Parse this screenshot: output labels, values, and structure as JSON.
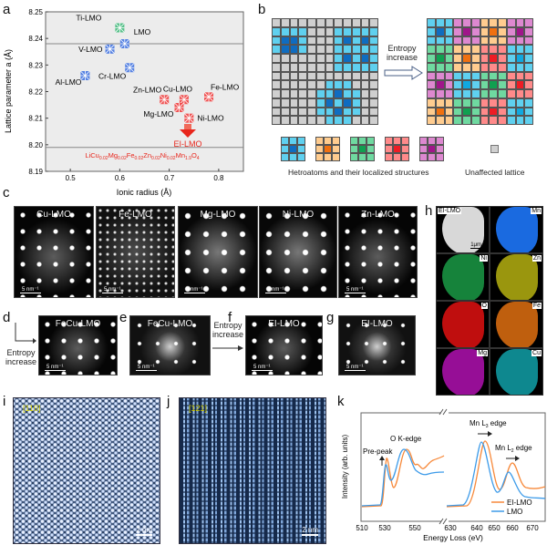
{
  "labels": {
    "a": "a",
    "b": "b",
    "c": "c",
    "d": "d",
    "e": "e",
    "f": "f",
    "g": "g",
    "h": "h",
    "i": "i",
    "j": "j",
    "k": "k"
  },
  "panel_a": {
    "ylabel": "Lattice parameter a (Å)",
    "xlabel": "Ionic radius (Å)",
    "xlim": [
      0.45,
      0.85
    ],
    "ylim": [
      8.19,
      8.25
    ],
    "xticks": [
      "0.5",
      "0.6",
      "0.7",
      "0.8"
    ],
    "yticks": [
      "8.19",
      "8.20",
      "8.21",
      "8.22",
      "8.23",
      "8.24",
      "8.25"
    ],
    "reference_lines": [
      8.238,
      8.199
    ],
    "points": [
      {
        "name": "Ti-LMO",
        "x": 0.6,
        "y": 8.244,
        "color": "#3cb878"
      },
      {
        "name": "LMO",
        "x": 0.61,
        "y": 8.238,
        "color": "#3b6fe0"
      },
      {
        "name": "V-LMO",
        "x": 0.58,
        "y": 8.236,
        "color": "#3b6fe0"
      },
      {
        "name": "Cr-LMO",
        "x": 0.62,
        "y": 8.229,
        "color": "#3b6fe0"
      },
      {
        "name": "Al-LMO",
        "x": 0.53,
        "y": 8.226,
        "color": "#3b6fe0"
      },
      {
        "name": "Zn-LMO",
        "x": 0.69,
        "y": 8.217,
        "color": "#f03a3a"
      },
      {
        "name": "Cu-LMO",
        "x": 0.73,
        "y": 8.217,
        "color": "#f03a3a"
      },
      {
        "name": "Fe-LMO",
        "x": 0.78,
        "y": 8.218,
        "color": "#f03a3a"
      },
      {
        "name": "Mg-LMO",
        "x": 0.72,
        "y": 8.214,
        "color": "#f03a3a"
      },
      {
        "name": "Ni-LMO",
        "x": 0.74,
        "y": 8.21,
        "color": "#f03a3a"
      }
    ],
    "ei_label": "EI-LMO",
    "formula": [
      [
        "LiCu",
        "0.02"
      ],
      [
        "Mg",
        "0.02"
      ],
      [
        "Fe",
        "0.02"
      ],
      [
        "Zn",
        "0.02"
      ],
      [
        "Ni",
        "0.02"
      ],
      [
        "Mn",
        "1.9"
      ],
      [
        "O",
        "4"
      ]
    ],
    "accent": "#e8261c"
  },
  "panel_b": {
    "arrow_text_1": "Entropy",
    "arrow_text_2": "increase",
    "legend_text": "Hetroatoms and their localized structures",
    "unaffected_text": "Unaffected lattice",
    "palette": {
      "blue": [
        "#5fd0ef",
        "#0f6cc0"
      ],
      "orange": [
        "#ffcc8f",
        "#f07010"
      ],
      "green": [
        "#6fd9a0",
        "#10a050"
      ],
      "red": [
        "#ff8a8a",
        "#ee1c24"
      ],
      "purple": [
        "#dd88d0",
        "#a0158a"
      ],
      "cyan": [
        "#5fd0ef",
        "#10a8e0"
      ]
    },
    "legend_order": [
      "blue",
      "orange",
      "green",
      "red",
      "purple"
    ],
    "right_blocks": [
      [
        "blue",
        "purple",
        "orange",
        "purple"
      ],
      [
        "green",
        "orange",
        "red",
        "cyan"
      ],
      [
        "purple",
        "cyan",
        "green",
        "red"
      ],
      [
        "orange",
        "green",
        "red",
        "cyan"
      ]
    ]
  },
  "panel_c": [
    {
      "title": "Cu-LMO",
      "scale": "5 nm⁻¹"
    },
    {
      "title": "Fe-LMO",
      "scale": "5 nm⁻¹"
    },
    {
      "title": "Mg-LMO",
      "scale": "5 nm⁻¹"
    },
    {
      "title": "Ni-LMO",
      "scale": "5 nm⁻¹"
    },
    {
      "title": "Zn-LMO",
      "scale": "5 nm⁻¹"
    }
  ],
  "panel_d": {
    "title": "FeCu-LMO",
    "scale": "5 nm⁻¹",
    "side_text_1": "Entropy",
    "side_text_2": "increase"
  },
  "panel_e": {
    "title": "FeCu-LMO",
    "scale": "5 nm⁻¹"
  },
  "panel_f": {
    "title": "EI-LMO",
    "scale": "5 nm⁻¹",
    "arrow_text_1": "Entropy",
    "arrow_text_2": "increase"
  },
  "panel_g": {
    "title": "EI-LMO",
    "scale": "5 nm⁻¹"
  },
  "panel_h": {
    "scale": "1μm",
    "maps": [
      {
        "label": "EI-LMO",
        "color": "#d8d8d8"
      },
      {
        "label": "Mn",
        "color": "#1a6ae0"
      },
      {
        "label": "Ni",
        "color": "#1a9a45"
      },
      {
        "label": "Zn",
        "color": "#b5b010"
      },
      {
        "label": "O",
        "color": "#e01010"
      },
      {
        "label": "Fe",
        "color": "#e07010"
      },
      {
        "label": "Mg",
        "color": "#b010b0"
      },
      {
        "label": "Cu",
        "color": "#10a0a8"
      }
    ]
  },
  "panel_i": {
    "axis": "[110]",
    "scale": "2 nm"
  },
  "panel_j": {
    "axis": "[121]",
    "scale": "2 nm"
  },
  "panel_k": {
    "ylabel": "Intensity (arb. units)",
    "xlabel": "Energy Loss (eV)",
    "xticks_left": [
      "510",
      "530",
      "550"
    ],
    "xticks_right": [
      "630",
      "640",
      "650",
      "660",
      "670"
    ],
    "annotations": {
      "prepeak": "Pre-peak",
      "ok": "O K-edge",
      "mnl3": "Mn L",
      "mnl3_sub": "3",
      "mnl2": "Mn L",
      "mnl2_sub": "2",
      "edge": " edge"
    },
    "legend": [
      {
        "name": "EI-LMO",
        "color": "#f7893a"
      },
      {
        "name": "LMO",
        "color": "#3d9be9"
      }
    ]
  }
}
